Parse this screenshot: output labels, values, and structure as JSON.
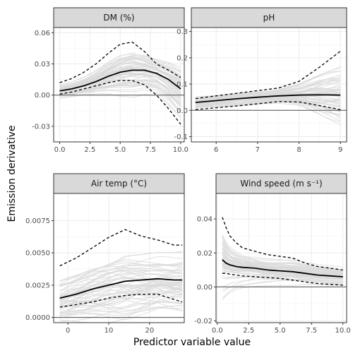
{
  "chart_data": {
    "type": "line",
    "xlabel": "Predictor variable value",
    "ylabel": "Emission derivative",
    "colors": {
      "individual_curves": "#d9d9d9",
      "central": "#000000",
      "band": "#000000",
      "zero_line": "#4d4d4d",
      "strip_bg": "#d9d9d9",
      "panel_border": "#333333",
      "grid": "#ebebeb"
    },
    "panels": [
      {
        "id": "dm",
        "strip": "DM (%)",
        "xlim": [
          -0.5,
          10.3
        ],
        "ylim": [
          -0.045,
          0.065
        ],
        "xticks": [
          0,
          2.5,
          5,
          7.5,
          10
        ],
        "xticklabels": [
          "0.0",
          "2.5",
          "5.0",
          "7.5",
          "10.0"
        ],
        "yticks": [
          -0.03,
          0,
          0.03,
          0.06
        ],
        "yticklabels": [
          "-0.03",
          "0.00",
          "0.03",
          "0.06"
        ],
        "series": [
          {
            "role": "central",
            "x": [
              0,
              1,
              2,
              3,
              4,
              5,
              6,
              7,
              8,
              9,
              10
            ],
            "y": [
              0.004,
              0.006,
              0.009,
              0.013,
              0.018,
              0.022,
              0.024,
              0.024,
              0.021,
              0.015,
              0.006
            ]
          },
          {
            "role": "upper",
            "x": [
              0,
              1,
              2,
              3,
              4,
              5,
              6,
              7,
              8,
              9,
              10
            ],
            "y": [
              0.012,
              0.016,
              0.022,
              0.03,
              0.04,
              0.049,
              0.051,
              0.042,
              0.03,
              0.024,
              0.017
            ]
          },
          {
            "role": "lower",
            "x": [
              0,
              1,
              2,
              3,
              4,
              5,
              6,
              7,
              8,
              9,
              10
            ],
            "y": [
              0.001,
              0.003,
              0.006,
              0.009,
              0.012,
              0.014,
              0.014,
              0.01,
              0.0,
              -0.013,
              -0.028
            ]
          }
        ]
      },
      {
        "id": "ph",
        "strip": "pH",
        "xlim": [
          5.4,
          9.15
        ],
        "ylim": [
          -0.12,
          0.315
        ],
        "xticks": [
          6,
          7,
          8,
          9
        ],
        "xticklabels": [
          "6",
          "7",
          "8",
          "9"
        ],
        "yticks": [
          -0.1,
          0,
          0.1,
          0.2,
          0.3
        ],
        "yticklabels": [
          "-0.1",
          "0.0",
          "0.1",
          "0.2",
          "0.3"
        ],
        "series": [
          {
            "role": "central",
            "x": [
              5.5,
              6,
              6.5,
              7,
              7.5,
              8,
              8.5,
              9
            ],
            "y": [
              0.03,
              0.037,
              0.044,
              0.05,
              0.055,
              0.058,
              0.059,
              0.058
            ]
          },
          {
            "role": "upper",
            "x": [
              5.5,
              6,
              6.5,
              7,
              7.5,
              8,
              8.5,
              9
            ],
            "y": [
              0.045,
              0.055,
              0.065,
              0.075,
              0.085,
              0.11,
              0.165,
              0.225
            ]
          },
          {
            "role": "lower",
            "x": [
              5.5,
              6,
              6.5,
              7,
              7.5,
              8,
              8.5,
              9
            ],
            "y": [
              0.003,
              0.01,
              0.017,
              0.025,
              0.033,
              0.032,
              0.018,
              0.003
            ]
          }
        ]
      },
      {
        "id": "airtemp",
        "strip": "Air temp (°C)",
        "xlim": [
          -3.5,
          28.5
        ],
        "ylim": [
          -0.0004,
          0.0096
        ],
        "xticks": [
          0,
          10,
          20
        ],
        "xticklabels": [
          "0",
          "10",
          "20"
        ],
        "yticks": [
          0,
          0.0025,
          0.005,
          0.0075
        ],
        "yticklabels": [
          "0.0000",
          "0.0025",
          "0.0050",
          "0.0075"
        ],
        "series": [
          {
            "role": "central",
            "x": [
              -2,
              2,
              6,
              10,
              14,
              18,
              22,
              26,
              28
            ],
            "y": [
              0.0015,
              0.0018,
              0.0022,
              0.0025,
              0.0028,
              0.0029,
              0.003,
              0.0029,
              0.0029
            ]
          },
          {
            "role": "upper",
            "x": [
              -2,
              2,
              6,
              10,
              14,
              18,
              22,
              26,
              28
            ],
            "y": [
              0.004,
              0.0046,
              0.0054,
              0.0062,
              0.0068,
              0.0063,
              0.006,
              0.0056,
              0.0056
            ]
          },
          {
            "role": "lower",
            "x": [
              -2,
              2,
              6,
              10,
              14,
              18,
              22,
              26,
              28
            ],
            "y": [
              0.0008,
              0.001,
              0.0012,
              0.0015,
              0.0017,
              0.0018,
              0.0018,
              0.0014,
              0.0012
            ]
          }
        ]
      },
      {
        "id": "wind",
        "strip": "Wind speed (m s⁻¹)",
        "xlim": [
          -0.1,
          10.3
        ],
        "ylim": [
          -0.021,
          0.055
        ],
        "xticks": [
          0,
          2.5,
          5,
          7.5,
          10
        ],
        "xticklabels": [
          "0.0",
          "2.5",
          "5.0",
          "7.5",
          "10.0"
        ],
        "yticks": [
          -0.02,
          0,
          0.02,
          0.04
        ],
        "yticklabels": [
          "-0.02",
          "0.00",
          "0.02",
          "0.04"
        ],
        "series": [
          {
            "role": "central",
            "x": [
              0.4,
              0.7,
              1,
              1.5,
              2,
              3,
              4,
              5,
              6,
              7,
              8,
              9,
              10
            ],
            "y": [
              0.016,
              0.014,
              0.013,
              0.012,
              0.0115,
              0.011,
              0.01,
              0.0095,
              0.009,
              0.008,
              0.007,
              0.0065,
              0.006
            ]
          },
          {
            "role": "upper",
            "x": [
              0.4,
              0.7,
              1,
              1.5,
              2,
              3,
              4,
              5,
              6,
              7,
              8,
              9,
              10
            ],
            "y": [
              0.041,
              0.035,
              0.03,
              0.026,
              0.023,
              0.021,
              0.019,
              0.018,
              0.017,
              0.014,
              0.012,
              0.011,
              0.01
            ]
          },
          {
            "role": "lower",
            "x": [
              0.4,
              0.7,
              1,
              1.5,
              2,
              3,
              4,
              5,
              6,
              7,
              8,
              9,
              10
            ],
            "y": [
              0.008,
              0.008,
              0.0075,
              0.007,
              0.0065,
              0.006,
              0.0055,
              0.005,
              0.004,
              0.003,
              0.002,
              0.0015,
              0.001
            ]
          }
        ]
      }
    ]
  }
}
